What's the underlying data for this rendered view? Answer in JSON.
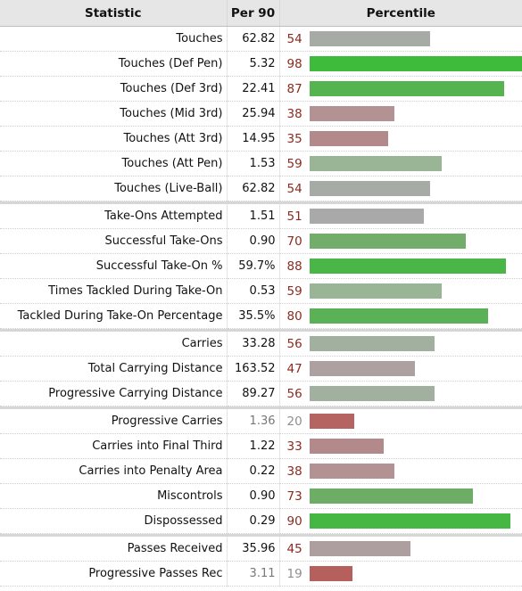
{
  "header": {
    "statistic": "Statistic",
    "per90": "Per 90",
    "percentile": "Percentile"
  },
  "colors": {
    "high": "#4bb648",
    "mid_green": "#72ad6c",
    "light_green": "#9ab596",
    "neutral": "#a6aba5",
    "pinkish": "#ada0a1",
    "rose": "#b38a8b",
    "red": "#b56461"
  },
  "groups": [
    [
      {
        "label": "Touches",
        "per90": "62.82",
        "pct": "54",
        "p": 54,
        "color": "#a6aba5"
      },
      {
        "label": "Touches (Def Pen)",
        "per90": "5.32",
        "pct": "98",
        "p": 98,
        "color": "#3fbb3c"
      },
      {
        "label": "Touches (Def 3rd)",
        "per90": "22.41",
        "pct": "87",
        "p": 87,
        "color": "#55b450"
      },
      {
        "label": "Touches (Mid 3rd)",
        "per90": "25.94",
        "pct": "38",
        "p": 38,
        "color": "#b39293"
      },
      {
        "label": "Touches (Att 3rd)",
        "per90": "14.95",
        "pct": "35",
        "p": 35,
        "color": "#b38a8b"
      },
      {
        "label": "Touches (Att Pen)",
        "per90": "1.53",
        "pct": "59",
        "p": 59,
        "color": "#9ab596"
      },
      {
        "label": "Touches (Live-Ball)",
        "per90": "62.82",
        "pct": "54",
        "p": 54,
        "color": "#a6aba5"
      }
    ],
    [
      {
        "label": "Take-Ons Attempted",
        "per90": "1.51",
        "pct": "51",
        "p": 51,
        "color": "#a9a9a9"
      },
      {
        "label": "Successful Take-Ons",
        "per90": "0.90",
        "pct": "70",
        "p": 70,
        "color": "#72ad6c"
      },
      {
        "label": "Successful Take-On %",
        "per90": "59.7%",
        "pct": "88",
        "p": 88,
        "color": "#4bb648"
      },
      {
        "label": "Times Tackled During Take-On",
        "per90": "0.53",
        "pct": "59",
        "p": 59,
        "color": "#9ab596"
      },
      {
        "label": "Tackled During Take-On Percentage",
        "per90": "35.5%",
        "pct": "80",
        "p": 80,
        "color": "#5bb155"
      }
    ],
    [
      {
        "label": "Carries",
        "per90": "33.28",
        "pct": "56",
        "p": 56,
        "color": "#a2b19f"
      },
      {
        "label": "Total Carrying Distance",
        "per90": "163.52",
        "pct": "47",
        "p": 47,
        "color": "#ada0a1"
      },
      {
        "label": "Progressive Carrying Distance",
        "per90": "89.27",
        "pct": "56",
        "p": 56,
        "color": "#a2b19f"
      }
    ],
    [
      {
        "label": "Progressive Carries",
        "per90": "1.36",
        "pct": "20",
        "p": 20,
        "color": "#b56461",
        "muted": true
      },
      {
        "label": "Carries into Final Third",
        "per90": "1.22",
        "pct": "33",
        "p": 33,
        "color": "#b38a8b"
      },
      {
        "label": "Carries into Penalty Area",
        "per90": "0.22",
        "pct": "38",
        "p": 38,
        "color": "#b39293"
      },
      {
        "label": "Miscontrols",
        "per90": "0.90",
        "pct": "73",
        "p": 73,
        "color": "#6ead66"
      },
      {
        "label": "Dispossessed",
        "per90": "0.29",
        "pct": "90",
        "p": 90,
        "color": "#47b744"
      }
    ],
    [
      {
        "label": "Passes Received",
        "per90": "35.96",
        "pct": "45",
        "p": 45,
        "color": "#ad9fa0"
      },
      {
        "label": "Progressive Passes Rec",
        "per90": "3.11",
        "pct": "19",
        "p": 19,
        "color": "#b5605d",
        "muted": true
      }
    ]
  ]
}
